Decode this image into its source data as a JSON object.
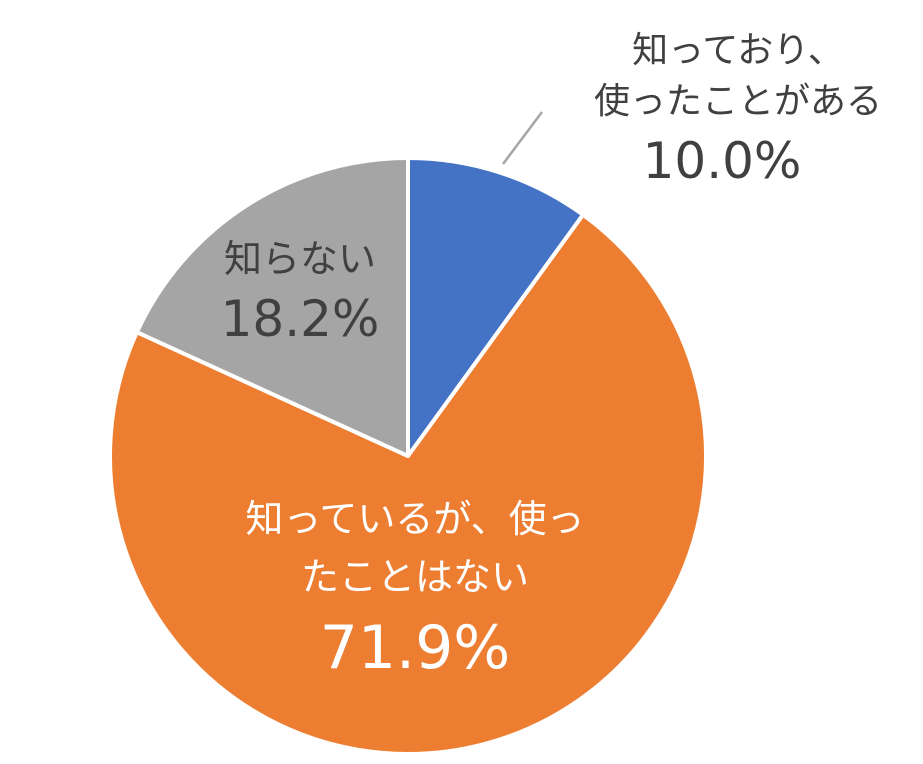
{
  "chart_data": {
    "type": "pie",
    "start_angle_deg": 0,
    "direction": "clockwise",
    "slices": [
      {
        "label_lines": [
          "知っており、",
          "使ったことがある"
        ],
        "value": 10.0,
        "value_label": "10.0%",
        "color": "#4472C4",
        "label_color": "#404040"
      },
      {
        "label_lines": [
          "知っているが、使っ",
          "たことはない"
        ],
        "value": 71.9,
        "value_label": "71.9%",
        "color": "#ED7D31",
        "label_color": "#FFFFFF"
      },
      {
        "label_lines": [
          "知らない"
        ],
        "value": 18.2,
        "value_label": "18.2%",
        "color": "#A5A5A5",
        "label_color": "#404040"
      }
    ],
    "border_color": "#FFFFFF"
  }
}
